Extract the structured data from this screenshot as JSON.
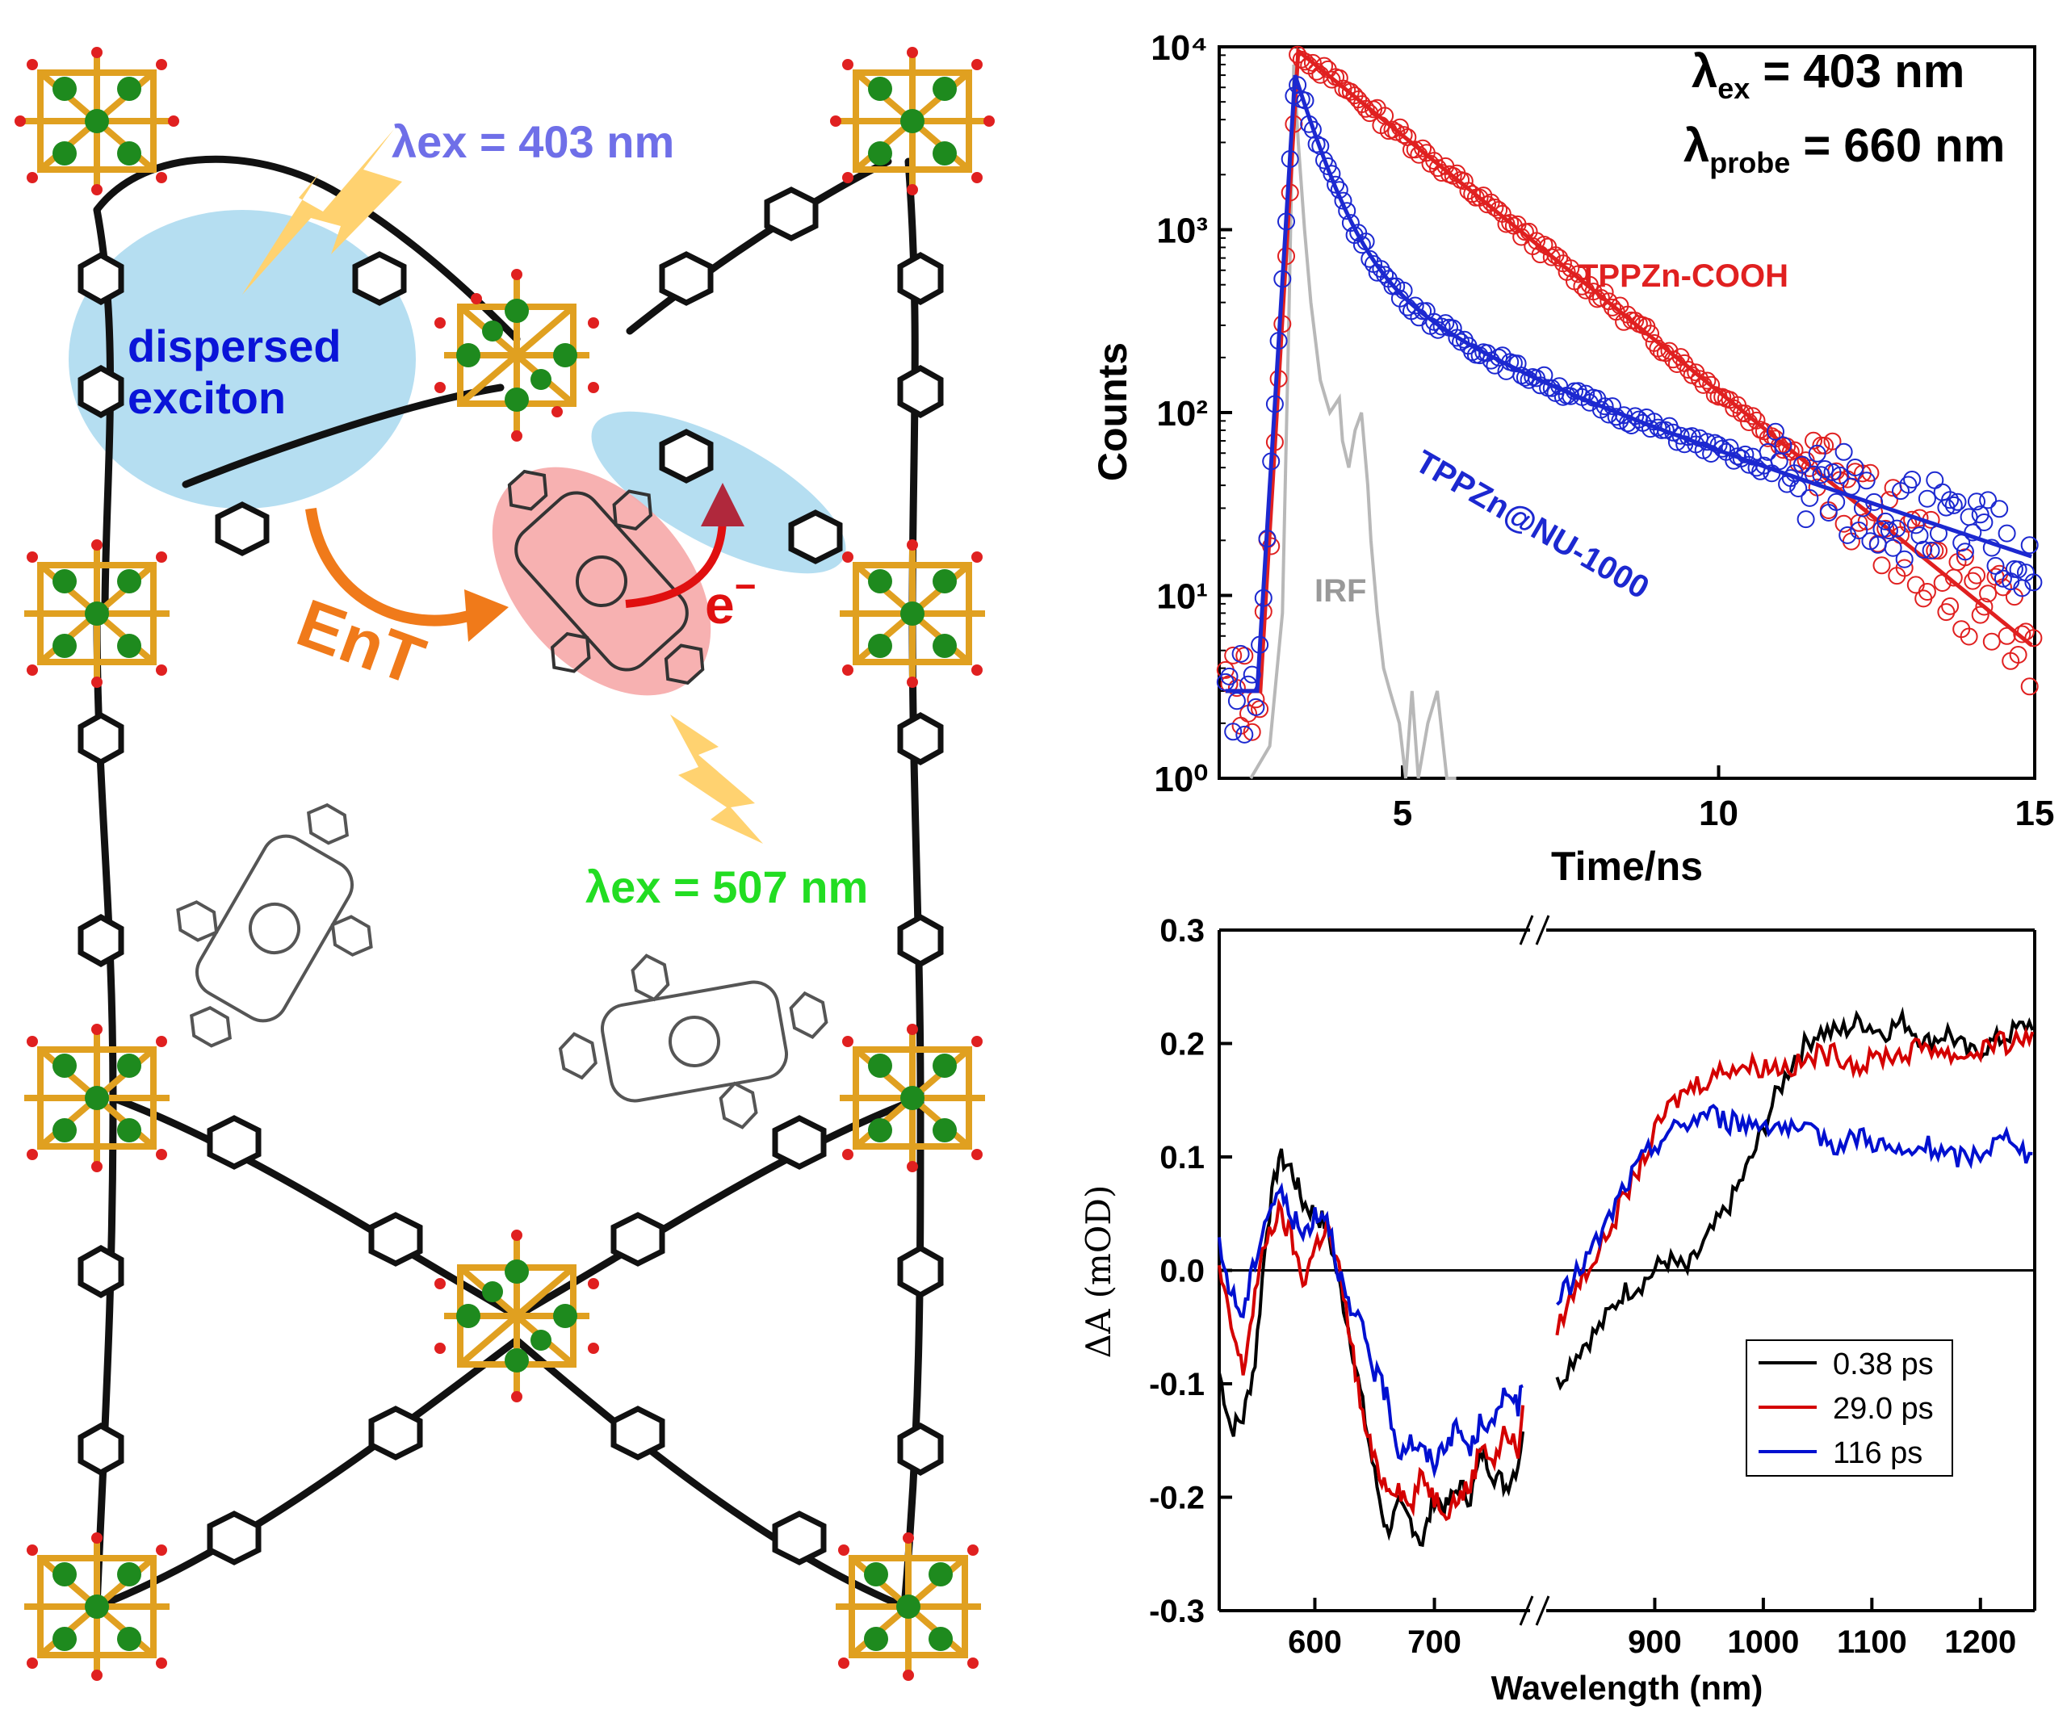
{
  "scheme": {
    "excitation_403": "λex = 403 nm",
    "excitation_507": "λex = 507 nm",
    "dispersed_exciton": [
      "dispersed",
      "exciton"
    ],
    "energy_transfer": "EnT",
    "electron": "e",
    "electron_sign": "−",
    "colors": {
      "blue_label": "#6f6fe8",
      "green_label": "#22dd22",
      "orange": "#f07a1a",
      "red": "#e01010",
      "blue_text": "#0a14d8",
      "light_blue": "#a8d8ee",
      "pink": "#f6a9a9",
      "bolt": "#ffd270"
    }
  },
  "chart_data": [
    {
      "type": "scatter",
      "title": "",
      "xlabel": "Time/ns",
      "ylabel": "Counts",
      "xlim": [
        2.1,
        15
      ],
      "ylim": [
        1,
        10000
      ],
      "yscale": "log",
      "xticks": [
        5,
        10,
        15
      ],
      "yticks": [
        "10⁰",
        "10¹",
        "10²",
        "10³",
        "10⁴"
      ],
      "annotations": {
        "lambda": "λ",
        "ex_sub": "ex",
        "ex_value": " = 403 nm",
        "probe_sub": "probe",
        "probe_value": " = 660 nm"
      },
      "series": [
        {
          "name": "TPPZn-COOH",
          "color": "#e02020",
          "rise_ns": 3.35,
          "peak": 9500,
          "decay": [
            {
              "amp": 1,
              "tau_ns": 1.55
            }
          ]
        },
        {
          "name": "TPPZn@NU-1000",
          "color": "#1c28d0",
          "rise_ns": 3.3,
          "peak": 7000,
          "decay": [
            {
              "amp": 0.85,
              "tau_ns": 0.36
            },
            {
              "amp": 0.1,
              "tau_ns": 1.15
            },
            {
              "amp": 0.05,
              "tau_ns": 3.8
            }
          ]
        },
        {
          "name": "IRF",
          "color": "#b8b8b8",
          "x": [
            2.6,
            2.9,
            3.1,
            3.2,
            3.28,
            3.35,
            3.45,
            3.55,
            3.7,
            3.85,
            4.0,
            4.05,
            4.15,
            4.25,
            4.35,
            4.45,
            4.5,
            4.6,
            4.7,
            4.8,
            4.95,
            5.05,
            5.15,
            5.25,
            5.4,
            5.55,
            5.7,
            5.85
          ],
          "values": [
            1,
            1.5,
            8,
            300,
            8000,
            3000,
            1000,
            400,
            150,
            100,
            120,
            70,
            50,
            80,
            100,
            40,
            20,
            8,
            4,
            3,
            2,
            1,
            3,
            1,
            2,
            3,
            1,
            1
          ]
        }
      ]
    },
    {
      "type": "line",
      "title": "",
      "xlabel": "Wavelength (nm)",
      "ylabel": "ΔA (mOD)",
      "ylim": [
        -0.3,
        0.3
      ],
      "yticks": [
        "0.3",
        "0.2",
        "0.1",
        "0.0",
        "-0.1",
        "-0.2",
        "-0.3"
      ],
      "xticks_left": [
        "600",
        "700"
      ],
      "xticks_right": [
        "900",
        "1000",
        "1100",
        "1200"
      ],
      "broken_axis": {
        "left": [
          520,
          780
        ],
        "right": [
          800,
          1250
        ]
      },
      "legend_position": "bottom-right",
      "series": [
        {
          "name": "0.38 ps",
          "color": "#000000",
          "left": [
            [
              520,
              -0.09
            ],
            [
              530,
              -0.14
            ],
            [
              540,
              -0.13
            ],
            [
              550,
              -0.08
            ],
            [
              560,
              0.04
            ],
            [
              570,
              0.1
            ],
            [
              580,
              0.09
            ],
            [
              590,
              0.06
            ],
            [
              600,
              0.05
            ],
            [
              610,
              0.04
            ],
            [
              620,
              -0.01
            ],
            [
              630,
              -0.06
            ],
            [
              640,
              -0.12
            ],
            [
              650,
              -0.18
            ],
            [
              660,
              -0.23
            ],
            [
              670,
              -0.21
            ],
            [
              680,
              -0.22
            ],
            [
              690,
              -0.24
            ],
            [
              700,
              -0.2
            ],
            [
              710,
              -0.21
            ],
            [
              720,
              -0.19
            ],
            [
              730,
              -0.2
            ],
            [
              740,
              -0.16
            ],
            [
              750,
              -0.18
            ],
            [
              760,
              -0.19
            ],
            [
              770,
              -0.17
            ],
            [
              775,
              -0.13
            ]
          ],
          "right": [
            [
              810,
              -0.1
            ],
            [
              830,
              -0.07
            ],
            [
              850,
              -0.05
            ],
            [
              870,
              -0.02
            ],
            [
              890,
              -0.01
            ],
            [
              910,
              0.01
            ],
            [
              930,
              0.0
            ],
            [
              950,
              0.03
            ],
            [
              970,
              0.06
            ],
            [
              990,
              0.1
            ],
            [
              1010,
              0.15
            ],
            [
              1030,
              0.19
            ],
            [
              1050,
              0.21
            ],
            [
              1070,
              0.21
            ],
            [
              1090,
              0.22
            ],
            [
              1110,
              0.21
            ],
            [
              1130,
              0.22
            ],
            [
              1150,
              0.2
            ],
            [
              1170,
              0.21
            ],
            [
              1190,
              0.19
            ],
            [
              1210,
              0.2
            ],
            [
              1230,
              0.21
            ],
            [
              1250,
              0.22
            ]
          ]
        },
        {
          "name": "29.0 ps",
          "color": "#d40000",
          "left": [
            [
              520,
              0.0
            ],
            [
              530,
              -0.05
            ],
            [
              540,
              -0.09
            ],
            [
              550,
              -0.02
            ],
            [
              560,
              0.03
            ],
            [
              570,
              0.05
            ],
            [
              580,
              0.03
            ],
            [
              590,
              -0.01
            ],
            [
              600,
              0.02
            ],
            [
              610,
              0.04
            ],
            [
              620,
              0.0
            ],
            [
              630,
              -0.06
            ],
            [
              640,
              -0.13
            ],
            [
              650,
              -0.17
            ],
            [
              660,
              -0.19
            ],
            [
              670,
              -0.19
            ],
            [
              680,
              -0.21
            ],
            [
              690,
              -0.18
            ],
            [
              700,
              -0.2
            ],
            [
              710,
              -0.21
            ],
            [
              720,
              -0.2
            ],
            [
              730,
              -0.19
            ],
            [
              740,
              -0.15
            ],
            [
              750,
              -0.17
            ],
            [
              760,
              -0.14
            ],
            [
              770,
              -0.16
            ],
            [
              775,
              -0.12
            ]
          ],
          "right": [
            [
              810,
              -0.05
            ],
            [
              830,
              -0.01
            ],
            [
              850,
              0.02
            ],
            [
              870,
              0.06
            ],
            [
              890,
              0.1
            ],
            [
              910,
              0.14
            ],
            [
              930,
              0.16
            ],
            [
              950,
              0.17
            ],
            [
              970,
              0.18
            ],
            [
              990,
              0.18
            ],
            [
              1010,
              0.18
            ],
            [
              1030,
              0.18
            ],
            [
              1050,
              0.19
            ],
            [
              1070,
              0.19
            ],
            [
              1090,
              0.18
            ],
            [
              1110,
              0.19
            ],
            [
              1130,
              0.19
            ],
            [
              1150,
              0.2
            ],
            [
              1170,
              0.19
            ],
            [
              1190,
              0.19
            ],
            [
              1210,
              0.2
            ],
            [
              1230,
              0.2
            ],
            [
              1250,
              0.21
            ]
          ]
        },
        {
          "name": "116 ps",
          "color": "#0010d0",
          "left": [
            [
              520,
              0.02
            ],
            [
              530,
              -0.02
            ],
            [
              540,
              -0.04
            ],
            [
              550,
              0.01
            ],
            [
              560,
              0.05
            ],
            [
              570,
              0.07
            ],
            [
              580,
              0.05
            ],
            [
              590,
              0.03
            ],
            [
              600,
              0.05
            ],
            [
              610,
              0.05
            ],
            [
              620,
              0.0
            ],
            [
              630,
              -0.04
            ],
            [
              640,
              -0.05
            ],
            [
              650,
              -0.09
            ],
            [
              660,
              -0.11
            ],
            [
              670,
              -0.16
            ],
            [
              680,
              -0.15
            ],
            [
              690,
              -0.16
            ],
            [
              700,
              -0.17
            ],
            [
              710,
              -0.15
            ],
            [
              720,
              -0.14
            ],
            [
              730,
              -0.16
            ],
            [
              740,
              -0.13
            ],
            [
              750,
              -0.14
            ],
            [
              760,
              -0.1
            ],
            [
              770,
              -0.12
            ],
            [
              775,
              -0.1
            ]
          ],
          "right": [
            [
              810,
              -0.03
            ],
            [
              830,
              0.0
            ],
            [
              850,
              0.03
            ],
            [
              870,
              0.07
            ],
            [
              890,
              0.1
            ],
            [
              910,
              0.12
            ],
            [
              930,
              0.13
            ],
            [
              950,
              0.14
            ],
            [
              970,
              0.13
            ],
            [
              990,
              0.13
            ],
            [
              1010,
              0.13
            ],
            [
              1030,
              0.12
            ],
            [
              1050,
              0.12
            ],
            [
              1070,
              0.11
            ],
            [
              1090,
              0.12
            ],
            [
              1110,
              0.11
            ],
            [
              1130,
              0.1
            ],
            [
              1150,
              0.11
            ],
            [
              1170,
              0.1
            ],
            [
              1190,
              0.1
            ],
            [
              1210,
              0.11
            ],
            [
              1230,
              0.12
            ],
            [
              1250,
              0.09
            ]
          ]
        }
      ]
    }
  ]
}
